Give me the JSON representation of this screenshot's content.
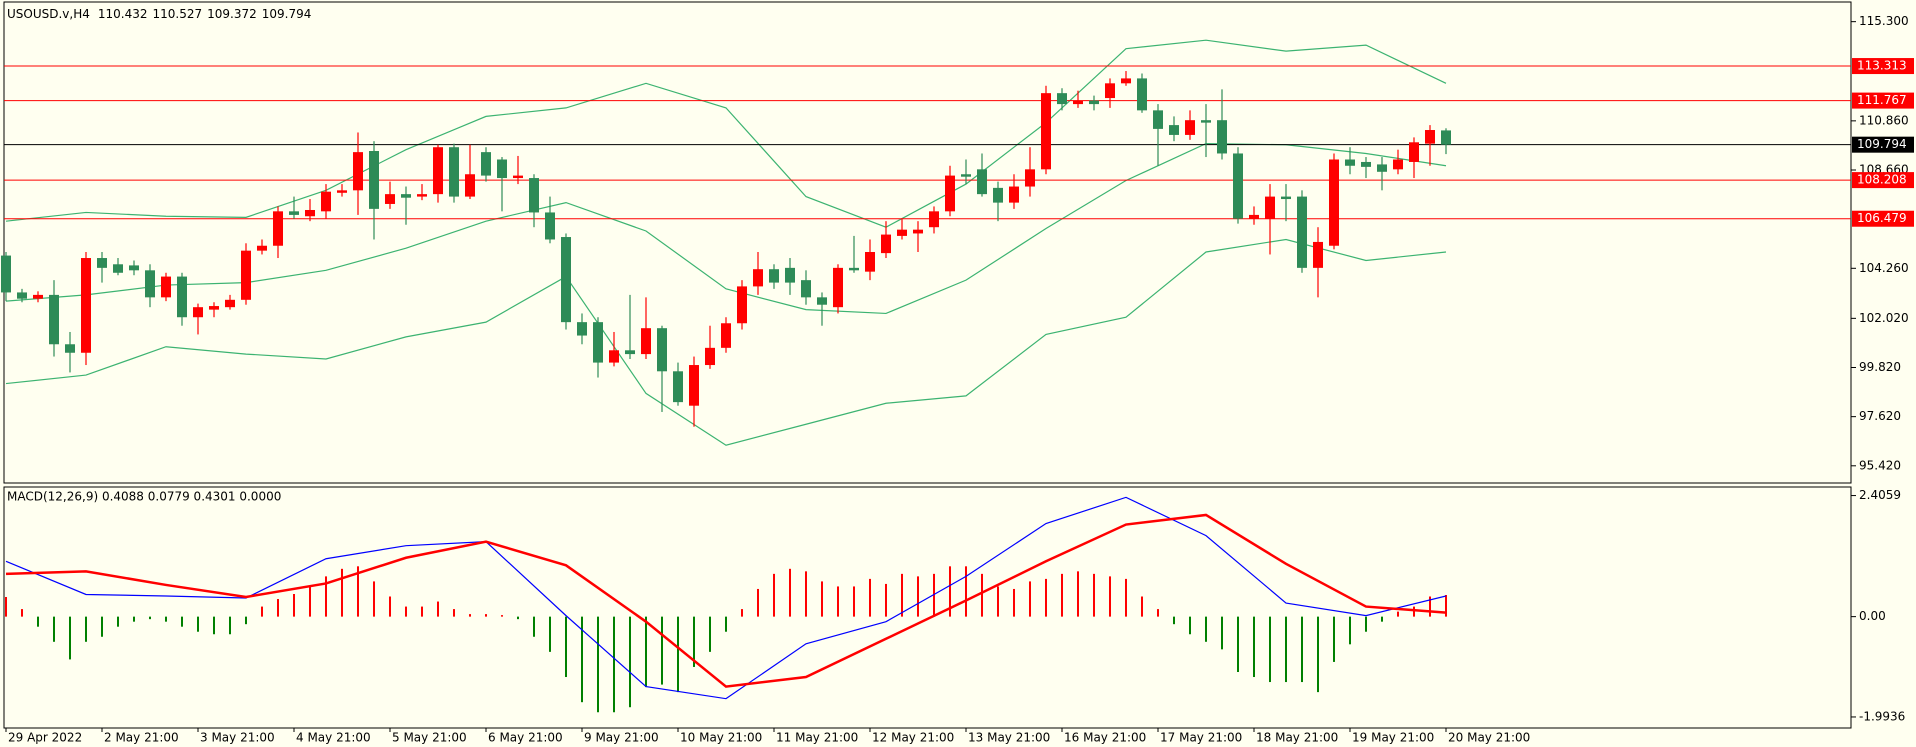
{
  "chart_data": [
    {
      "type": "candlestick",
      "title": "USOUSD.v,H4",
      "categories": [
        "29 Apr 2022",
        null,
        null,
        null,
        null,
        null,
        "2 May 21:00",
        null,
        null,
        null,
        null,
        null,
        "3 May 21:00",
        null,
        null,
        null,
        null,
        null,
        "4 May 21:00",
        null,
        null,
        null,
        null,
        null,
        "5 May 21:00",
        null,
        null,
        null,
        null,
        null,
        "6 May 21:00",
        null,
        null,
        null,
        null,
        null,
        "9 May 21:00",
        null,
        null,
        null,
        null,
        null,
        "10 May 21:00",
        null,
        null,
        null,
        null,
        null,
        "11 May 21:00",
        null,
        null,
        null,
        null,
        null,
        "12 May 21:00",
        null,
        null,
        null,
        null,
        null,
        "13 May 21:00",
        null,
        null,
        null,
        null,
        null,
        "16 May 21:00",
        null,
        null,
        null,
        null,
        null,
        "17 May 21:00",
        null,
        null,
        null,
        null,
        null,
        "18 May 21:00",
        null,
        null,
        null,
        null,
        null,
        "19 May 21:00",
        null,
        null,
        null,
        null,
        null,
        "20 May 21:00"
      ],
      "open": [
        104.83,
        103.18,
        102.9,
        103.07,
        100.86,
        100.48,
        104.72,
        104.44,
        104.39,
        104.17,
        102.96,
        103.89,
        102.07,
        102.41,
        102.52,
        102.85,
        105.05,
        105.27,
        106.81,
        106.59,
        106.81,
        107.64,
        107.75,
        109.51,
        107.14,
        107.58,
        107.47,
        107.58,
        109.68,
        107.47,
        109.46,
        109.13,
        108.3,
        108.3,
        106.76,
        105.66,
        101.85,
        101.85,
        100.04,
        100.59,
        100.42,
        101.58,
        99.65,
        98.11,
        99.93,
        100.7,
        101.8,
        103.45,
        104.22,
        104.28,
        103.73,
        102.96,
        102.52,
        104.28,
        104.11,
        104.94,
        105.71,
        105.82,
        106.1,
        106.81,
        108.47,
        108.69,
        107.86,
        107.2,
        107.92,
        108.69,
        112.1,
        111.61,
        111.77,
        111.88,
        112.54,
        112.76,
        111.33,
        110.67,
        110.23,
        110.89,
        110.89,
        109.4,
        106.48,
        106.48,
        107.47,
        107.47,
        104.28,
        105.27,
        109.13,
        109.02,
        108.91,
        108.69,
        109.02,
        109.84,
        110.432
      ],
      "high": [
        104.99,
        103.34,
        103.23,
        103.73,
        101.41,
        104.99,
        104.99,
        104.72,
        104.61,
        104.44,
        104.06,
        104.06,
        102.68,
        102.74,
        103.07,
        105.38,
        105.55,
        107.03,
        107.47,
        107.36,
        108.03,
        108.03,
        110.34,
        109.95,
        108.14,
        107.92,
        108.03,
        109.79,
        109.84,
        109.79,
        109.68,
        109.24,
        109.29,
        108.47,
        107.47,
        105.82,
        102.24,
        102.07,
        101.41,
        103.07,
        102.96,
        101.69,
        100.04,
        100.31,
        101.69,
        102.07,
        103.73,
        104.99,
        104.44,
        104.72,
        104.17,
        103.18,
        104.44,
        105.71,
        105.55,
        106.37,
        106.48,
        106.37,
        107.03,
        108.85,
        109.13,
        109.4,
        108.14,
        108.47,
        109.68,
        112.43,
        112.32,
        112.21,
        111.99,
        112.76,
        113.09,
        112.98,
        111.61,
        111.06,
        111.33,
        111.61,
        112.27,
        109.68,
        107.03,
        108.03,
        108.03,
        107.75,
        106.1,
        109.4,
        109.68,
        109.24,
        109.24,
        109.57,
        110.12,
        110.67,
        110.527
      ],
      "low": [
        102.79,
        102.74,
        102.74,
        100.31,
        99.6,
        99.93,
        103.62,
        103.95,
        103.95,
        102.52,
        102.79,
        101.69,
        101.3,
        102.07,
        102.41,
        102.63,
        104.88,
        104.72,
        106.48,
        106.37,
        106.48,
        107.47,
        106.65,
        105.55,
        106.92,
        106.21,
        107.31,
        107.2,
        107.2,
        107.36,
        108.14,
        106.81,
        108.03,
        106.1,
        105.38,
        101.52,
        100.86,
        99.37,
        99.87,
        100.2,
        100.2,
        97.83,
        98.11,
        97.17,
        99.76,
        100.48,
        101.52,
        103.07,
        103.34,
        103.07,
        102.63,
        101.69,
        102.24,
        104.06,
        103.73,
        104.72,
        105.55,
        104.99,
        105.82,
        106.59,
        108.03,
        107.47,
        106.37,
        106.92,
        107.47,
        108.47,
        111.33,
        111.44,
        111.33,
        111.44,
        112.43,
        111.22,
        108.85,
        109.95,
        110.01,
        109.24,
        109.13,
        106.26,
        106.21,
        104.88,
        106.37,
        104.06,
        102.96,
        105.11,
        108.47,
        108.3,
        107.75,
        108.47,
        108.3,
        108.85,
        109.372
      ],
      "close": [
        103.18,
        102.9,
        103.07,
        100.86,
        100.48,
        104.72,
        104.28,
        104.06,
        104.17,
        102.96,
        103.89,
        102.07,
        102.52,
        102.57,
        102.85,
        105.05,
        105.27,
        106.81,
        106.65,
        106.87,
        107.69,
        107.75,
        109.46,
        106.92,
        107.58,
        107.42,
        107.58,
        109.68,
        107.47,
        108.47,
        108.41,
        108.3,
        108.41,
        106.76,
        105.55,
        101.85,
        101.25,
        100.04,
        100.59,
        100.42,
        101.58,
        99.65,
        98.27,
        99.93,
        100.7,
        101.8,
        103.45,
        104.22,
        103.62,
        103.62,
        102.96,
        102.63,
        104.28,
        104.17,
        104.99,
        105.77,
        105.99,
        105.99,
        106.81,
        108.41,
        108.36,
        107.58,
        107.2,
        107.92,
        108.69,
        112.1,
        111.61,
        111.77,
        111.61,
        112.54,
        112.76,
        111.33,
        110.5,
        110.23,
        110.89,
        110.78,
        109.4,
        106.48,
        106.65,
        107.47,
        107.36,
        104.28,
        105.44,
        109.13,
        108.85,
        108.8,
        108.58,
        109.13,
        109.9,
        110.45,
        109.794
      ],
      "up_color": "#ff0000",
      "down_color": "#2e8b57",
      "bands": {
        "color": "#3cb371",
        "x": [
          0,
          5,
          10,
          15,
          20,
          25,
          30,
          35,
          40,
          45,
          50,
          55,
          60,
          65,
          70,
          75,
          80,
          85,
          90
        ],
        "upper": [
          106.37,
          106.76,
          106.59,
          106.54,
          107.75,
          109.57,
          111.06,
          111.44,
          112.54,
          111.44,
          107.47,
          106.1,
          108.03,
          110.78,
          114.09,
          114.47,
          113.98,
          114.25,
          112.54
        ],
        "middle": [
          102.79,
          103.07,
          103.51,
          103.62,
          104.17,
          105.16,
          106.37,
          107.2,
          105.93,
          103.34,
          102.41,
          102.24,
          103.73,
          106.04,
          108.19,
          109.84,
          109.79,
          109.4,
          108.85
        ],
        "lower": [
          99.1,
          99.48,
          100.75,
          100.42,
          100.2,
          101.19,
          101.85,
          103.89,
          98.66,
          96.34,
          97.28,
          98.22,
          98.55,
          101.3,
          102.07,
          104.99,
          105.55,
          104.61,
          104.99
        ]
      },
      "hlines": [
        {
          "value": 113.313,
          "color": "#ff0000"
        },
        {
          "value": 111.767,
          "color": "#ff0000"
        },
        {
          "value": 109.794,
          "color": "#000000"
        },
        {
          "value": 108.208,
          "color": "#ff0000"
        },
        {
          "value": 106.479,
          "color": "#ff0000"
        }
      ],
      "ylim": [
        94.65,
        116.18
      ],
      "yticks": [
        {
          "value": 115.3,
          "label": "115.300"
        },
        {
          "value": 110.86,
          "label": "110.860"
        },
        {
          "value": 108.66,
          "label": "108.660"
        },
        {
          "value": 104.26,
          "label": "104.260"
        },
        {
          "value": 102.02,
          "label": "102.020"
        },
        {
          "value": 99.82,
          "label": "99.820"
        },
        {
          "value": 97.62,
          "label": "97.620"
        },
        {
          "value": 95.42,
          "label": "95.420"
        }
      ]
    },
    {
      "type": "macd",
      "title": "MACD(12,26,9) 0.4088 0.0779 0.4301 0.0000",
      "histogram": [
        0.39,
        0.15,
        -0.2,
        -0.5,
        -0.85,
        -0.5,
        -0.4,
        -0.2,
        -0.1,
        -0.05,
        -0.1,
        -0.2,
        -0.3,
        -0.35,
        -0.35,
        -0.15,
        0.2,
        0.35,
        0.45,
        0.6,
        0.8,
        0.95,
        1.0,
        0.7,
        0.4,
        0.2,
        0.2,
        0.3,
        0.15,
        0.05,
        0.05,
        0.03,
        -0.05,
        -0.4,
        -0.7,
        -1.2,
        -1.7,
        -1.9,
        -1.9,
        -1.8,
        -1.4,
        -1.35,
        -1.5,
        -1.0,
        -0.7,
        -0.3,
        0.15,
        0.55,
        0.85,
        0.95,
        0.9,
        0.7,
        0.6,
        0.6,
        0.75,
        0.65,
        0.85,
        0.8,
        0.85,
        1.0,
        1.0,
        0.85,
        0.6,
        0.55,
        0.7,
        0.75,
        0.85,
        0.9,
        0.85,
        0.8,
        0.75,
        0.4,
        0.15,
        -0.15,
        -0.35,
        -0.5,
        -0.65,
        -1.1,
        -1.2,
        -1.3,
        -1.3,
        -1.3,
        -1.5,
        -0.9,
        -0.55,
        -0.3,
        -0.1,
        0.1,
        0.2,
        0.4,
        0.4301
      ],
      "positive_color": "#ff0000",
      "negative_color": "#008000",
      "x": [
        0,
        5,
        10,
        15,
        20,
        25,
        30,
        35,
        40,
        45,
        50,
        55,
        60,
        65,
        70,
        75,
        80,
        85,
        90
      ],
      "series": [
        {
          "color": "#0000ff",
          "values": [
            1.1,
            0.44,
            0.41,
            0.37,
            1.15,
            1.41,
            1.49,
            0.02,
            -1.39,
            -1.63,
            -0.54,
            -0.1,
            0.8,
            1.85,
            2.37,
            1.61,
            0.27,
            0.02,
            0.41
          ]
        },
        {
          "color": "#ff0000",
          "values": [
            0.85,
            0.9,
            0.63,
            0.39,
            0.66,
            1.17,
            1.49,
            1.02,
            -0.1,
            -1.39,
            -1.2,
            -0.44,
            0.32,
            1.1,
            1.83,
            2.02,
            1.05,
            0.2,
            0.08
          ]
        }
      ],
      "ylim": [
        -2.213,
        2.576
      ],
      "yticks": [
        2.4059,
        {
          "value": 0,
          "label": "0.00"
        },
        -1.9936
      ]
    }
  ]
}
